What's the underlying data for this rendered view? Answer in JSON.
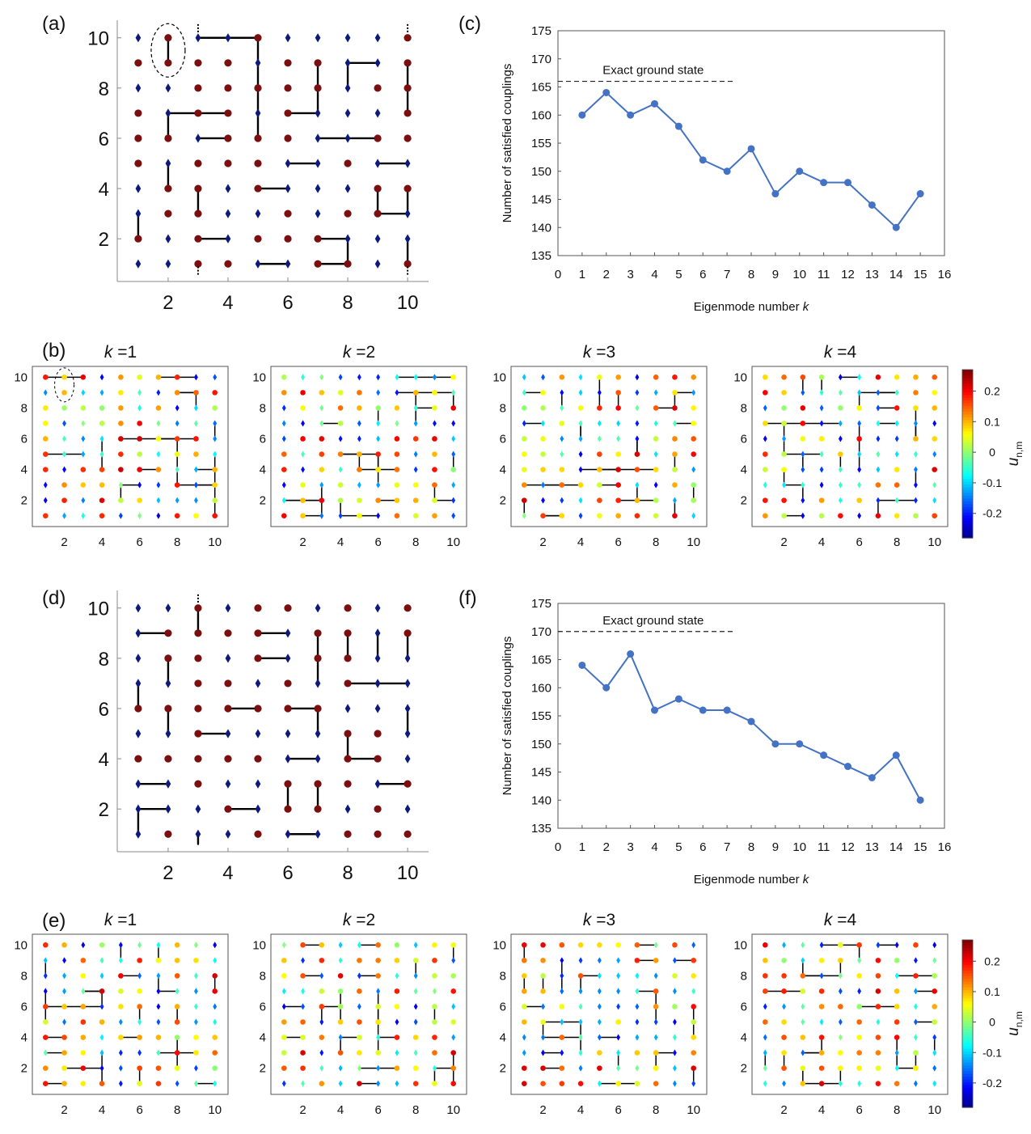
{
  "panel_labels": [
    "(a)",
    "(b)",
    "(c)",
    "(d)",
    "(e)",
    "(f)"
  ],
  "colorbar": {
    "label": "u",
    "label_sub": "n,m",
    "range": [
      -0.28,
      0.27
    ],
    "ticks": [
      "0.2",
      "0.1",
      "0",
      "-0.1",
      "-0.2"
    ],
    "tick_values": [
      0.2,
      0.1,
      0,
      -0.1,
      -0.2
    ]
  },
  "small_titles": [
    "k =1",
    "k =2",
    "k =3",
    "k =4"
  ],
  "spin_colors": {
    "up": "#7b0f0f",
    "down": "#0d1a7a"
  },
  "chart_data": [
    {
      "type": "scatter",
      "panel": "a",
      "lattice": "10x10 spin configuration",
      "xticks": [
        2,
        4,
        6,
        8,
        10
      ],
      "yticks": [
        2,
        4,
        6,
        8,
        10
      ],
      "xlim": [
        0.3,
        10.7
      ],
      "ylim": [
        0.3,
        10.7
      ],
      "up_rows": {
        "10": [
          2,
          5,
          10
        ],
        "9": [
          1,
          2,
          3,
          4,
          6,
          7,
          10
        ],
        "8": [
          3,
          4,
          5,
          6,
          7,
          9,
          10
        ],
        "7": [
          1,
          3,
          4,
          6,
          10
        ],
        "6": [
          1,
          2,
          4,
          5,
          6,
          9,
          10
        ],
        "5": [
          1,
          3,
          4,
          5,
          8
        ],
        "4": [
          2,
          3,
          5,
          9,
          10
        ],
        "3": [
          2,
          3,
          6,
          8,
          9
        ],
        "2": [
          1,
          3,
          5,
          6,
          7
        ],
        "1": [
          3,
          4,
          7,
          8,
          10
        ]
      },
      "frustrated_couplings": [
        [
          [
            2,
            10
          ],
          [
            2,
            9
          ]
        ],
        [
          [
            3,
            10
          ],
          [
            4,
            10
          ]
        ],
        [
          [
            4,
            10
          ],
          [
            5,
            10
          ]
        ],
        [
          [
            5,
            10
          ],
          [
            5,
            9
          ]
        ],
        [
          [
            5,
            9
          ],
          [
            5,
            8
          ]
        ],
        [
          [
            5,
            8
          ],
          [
            5,
            7
          ]
        ],
        [
          [
            5,
            7
          ],
          [
            5,
            6
          ]
        ],
        [
          [
            7,
            9
          ],
          [
            7,
            8
          ]
        ],
        [
          [
            7,
            8
          ],
          [
            7,
            7
          ]
        ],
        [
          [
            7,
            7
          ],
          [
            6,
            7
          ]
        ],
        [
          [
            8,
            9
          ],
          [
            9,
            9
          ]
        ],
        [
          [
            8,
            9
          ],
          [
            8,
            8
          ]
        ],
        [
          [
            10,
            9
          ],
          [
            10,
            8
          ]
        ],
        [
          [
            10,
            8
          ],
          [
            10,
            7
          ]
        ],
        [
          [
            2,
            7
          ],
          [
            3,
            7
          ]
        ],
        [
          [
            3,
            7
          ],
          [
            4,
            7
          ]
        ],
        [
          [
            2,
            7
          ],
          [
            2,
            6
          ]
        ],
        [
          [
            3,
            6
          ],
          [
            4,
            6
          ]
        ],
        [
          [
            7,
            6
          ],
          [
            8,
            6
          ]
        ],
        [
          [
            8,
            6
          ],
          [
            9,
            6
          ]
        ],
        [
          [
            6,
            5
          ],
          [
            7,
            5
          ]
        ],
        [
          [
            9,
            5
          ],
          [
            10,
            5
          ]
        ],
        [
          [
            2,
            5
          ],
          [
            2,
            4
          ]
        ],
        [
          [
            5,
            4
          ],
          [
            6,
            4
          ]
        ],
        [
          [
            9,
            4
          ],
          [
            9,
            3
          ]
        ],
        [
          [
            9,
            3
          ],
          [
            10,
            3
          ]
        ],
        [
          [
            10,
            4
          ],
          [
            10,
            3
          ]
        ],
        [
          [
            1,
            3
          ],
          [
            1,
            2
          ]
        ],
        [
          [
            3,
            4
          ],
          [
            3,
            3
          ]
        ],
        [
          [
            3,
            2
          ],
          [
            4,
            2
          ]
        ],
        [
          [
            7,
            2
          ],
          [
            8,
            2
          ]
        ],
        [
          [
            8,
            2
          ],
          [
            8,
            1
          ]
        ],
        [
          [
            7,
            1
          ],
          [
            8,
            1
          ]
        ],
        [
          [
            5,
            1
          ],
          [
            6,
            1
          ]
        ],
        [
          [
            10,
            2
          ],
          [
            10,
            1
          ]
        ]
      ]
    },
    {
      "type": "scatter",
      "panel": "b",
      "eigenmodes": [
        "k =1",
        "k =2",
        "k =3",
        "k =4"
      ],
      "xticks": [
        2,
        4,
        6,
        8,
        10
      ],
      "yticks": [
        2,
        4,
        6,
        8,
        10
      ],
      "value_range": [
        -0.28,
        0.27
      ]
    },
    {
      "type": "line",
      "panel": "c",
      "x": [
        1,
        2,
        3,
        4,
        5,
        6,
        7,
        8,
        9,
        10,
        11,
        12,
        13,
        14,
        15
      ],
      "y": [
        160,
        164,
        160,
        162,
        158,
        152,
        150,
        154,
        146,
        150,
        148,
        148,
        144,
        140,
        146
      ],
      "xlabel": "Eigenmode number k",
      "ylabel": "Number of satisfied couplings",
      "xlim": [
        0,
        16
      ],
      "ylim": [
        135,
        175
      ],
      "xticks": [
        0,
        1,
        2,
        3,
        4,
        5,
        6,
        7,
        8,
        9,
        10,
        11,
        12,
        13,
        14,
        15,
        16
      ],
      "yticks": [
        135,
        140,
        145,
        150,
        155,
        160,
        165,
        170,
        175
      ],
      "reference_line": {
        "label": "Exact ground state",
        "y": 166,
        "x_range": [
          0,
          7.3
        ]
      },
      "color": "#4472c4"
    },
    {
      "type": "scatter",
      "panel": "d",
      "lattice": "10x10 spin configuration",
      "xticks": [
        2,
        4,
        6,
        8,
        10
      ],
      "yticks": [
        2,
        4,
        6,
        8,
        10
      ],
      "xlim": [
        0.3,
        10.7
      ],
      "ylim": [
        0.3,
        10.7
      ],
      "up_rows": {
        "10": [
          3,
          5,
          6,
          8,
          10
        ],
        "9": [
          2,
          3,
          4,
          5,
          7,
          8,
          10
        ],
        "8": [
          2,
          3,
          5,
          7,
          8
        ],
        "7": [
          3,
          4,
          6,
          8
        ],
        "6": [
          1,
          2,
          3,
          4,
          5,
          6,
          7
        ],
        "5": [
          3,
          8,
          9
        ],
        "4": [
          1,
          2,
          3,
          4,
          5,
          8,
          9
        ],
        "3": [
          3,
          6,
          7,
          8,
          10
        ],
        "2": [
          4,
          6,
          7,
          9
        ],
        "1": [
          2,
          5,
          8,
          9,
          10
        ]
      },
      "frustrated_couplings": [
        [
          [
            3,
            10
          ],
          [
            3,
            9
          ]
        ],
        [
          [
            1,
            9
          ],
          [
            2,
            9
          ]
        ],
        [
          [
            5,
            9
          ],
          [
            6,
            9
          ]
        ],
        [
          [
            7,
            9
          ],
          [
            7,
            8
          ]
        ],
        [
          [
            7,
            8
          ],
          [
            7,
            7
          ]
        ],
        [
          [
            8,
            9
          ],
          [
            8,
            8
          ]
        ],
        [
          [
            9,
            9
          ],
          [
            9,
            8
          ]
        ],
        [
          [
            10,
            9
          ],
          [
            10,
            8
          ]
        ],
        [
          [
            2,
            8
          ],
          [
            2,
            7
          ]
        ],
        [
          [
            5,
            8
          ],
          [
            6,
            8
          ]
        ],
        [
          [
            8,
            7
          ],
          [
            9,
            7
          ]
        ],
        [
          [
            9,
            7
          ],
          [
            10,
            7
          ]
        ],
        [
          [
            1,
            7
          ],
          [
            1,
            6
          ]
        ],
        [
          [
            2,
            6
          ],
          [
            2,
            5
          ]
        ],
        [
          [
            4,
            6
          ],
          [
            5,
            6
          ]
        ],
        [
          [
            6,
            6
          ],
          [
            7,
            6
          ]
        ],
        [
          [
            7,
            6
          ],
          [
            7,
            5
          ]
        ],
        [
          [
            10,
            6
          ],
          [
            10,
            5
          ]
        ],
        [
          [
            3,
            5
          ],
          [
            4,
            5
          ]
        ],
        [
          [
            8,
            5
          ],
          [
            8,
            4
          ]
        ],
        [
          [
            8,
            4
          ],
          [
            9,
            4
          ]
        ],
        [
          [
            6,
            4
          ],
          [
            7,
            4
          ]
        ],
        [
          [
            1,
            3
          ],
          [
            2,
            3
          ]
        ],
        [
          [
            9,
            3
          ],
          [
            10,
            3
          ]
        ],
        [
          [
            6,
            3
          ],
          [
            6,
            2
          ]
        ],
        [
          [
            7,
            3
          ],
          [
            7,
            2
          ]
        ],
        [
          [
            1,
            2
          ],
          [
            2,
            2
          ]
        ],
        [
          [
            1,
            2
          ],
          [
            1,
            1
          ]
        ],
        [
          [
            4,
            2
          ],
          [
            5,
            2
          ]
        ],
        [
          [
            3,
            1
          ],
          [
            3,
            0.6
          ]
        ],
        [
          [
            6,
            1
          ],
          [
            7,
            1
          ]
        ]
      ]
    },
    {
      "type": "scatter",
      "panel": "e",
      "eigenmodes": [
        "k =1",
        "k =2",
        "k =3",
        "k =4"
      ],
      "xticks": [
        2,
        4,
        6,
        8,
        10
      ],
      "yticks": [
        2,
        4,
        6,
        8,
        10
      ],
      "value_range": [
        -0.28,
        0.27
      ]
    },
    {
      "type": "line",
      "panel": "f",
      "x": [
        1,
        2,
        3,
        4,
        5,
        6,
        7,
        8,
        9,
        10,
        11,
        12,
        13,
        14,
        15
      ],
      "y": [
        164,
        160,
        166,
        156,
        158,
        156,
        156,
        154,
        150,
        150,
        148,
        146,
        144,
        148,
        140
      ],
      "xlabel": "Eigenmode number k",
      "ylabel": "Number of satisfied couplings",
      "xlim": [
        0,
        16
      ],
      "ylim": [
        135,
        175
      ],
      "xticks": [
        0,
        1,
        2,
        3,
        4,
        5,
        6,
        7,
        8,
        9,
        10,
        11,
        12,
        13,
        14,
        15,
        16
      ],
      "yticks": [
        135,
        140,
        145,
        150,
        155,
        160,
        165,
        170,
        175
      ],
      "reference_line": {
        "label": "Exact ground state",
        "y": 170,
        "x_range": [
          0,
          7.3
        ]
      },
      "color": "#4472c4"
    }
  ]
}
